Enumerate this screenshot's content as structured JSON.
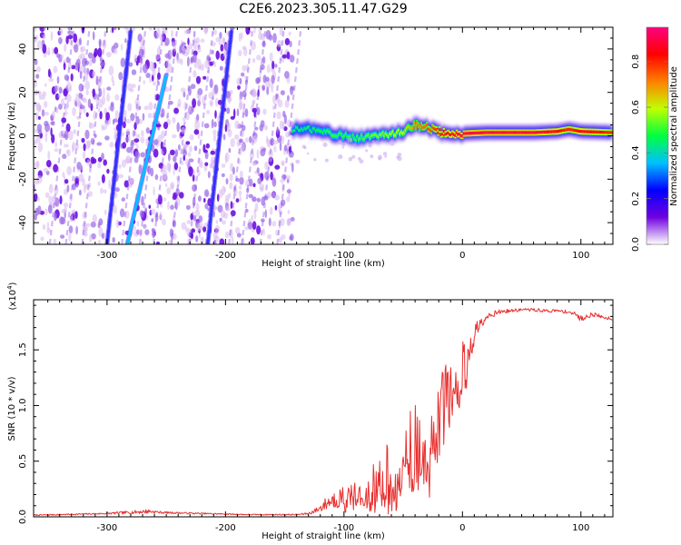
{
  "figure": {
    "title": "C2E6.2023.305.11.47.G29"
  },
  "chart_data": [
    {
      "type": "heatmap",
      "xlabel": "Height of straight line (km)",
      "ylabel": "Frequency (Hz)",
      "xlim": [
        -362,
        127
      ],
      "ylim": [
        -50,
        50
      ],
      "x_ticks": [
        -300,
        -200,
        -100,
        0,
        100
      ],
      "x_tick_labels": [
        "-300",
        "-200",
        "-100",
        "0",
        "100"
      ],
      "y_ticks": [
        -40,
        -20,
        0,
        20,
        40
      ],
      "y_tick_labels": [
        "-40",
        "-20",
        "0",
        "20",
        "40"
      ],
      "colorbar": {
        "label": "Normalized spectral amplitude",
        "range": [
          0,
          0.95
        ],
        "ticks": [
          0.0,
          0.2,
          0.4,
          0.6,
          0.8
        ],
        "tick_labels": [
          "0.0",
          "0.2",
          "0.4",
          "0.6",
          "0.8"
        ],
        "colormap": [
          "#ffffff",
          "#7000e0",
          "#0000ff",
          "#00c0ff",
          "#00ff40",
          "#c0ff00",
          "#ff8000",
          "#ff0000",
          "#ff0080"
        ]
      },
      "features": {
        "noise_region_x": [
          -362,
          -143
        ],
        "diagonal_streaks": [
          {
            "x_start": -283,
            "y_start": -50,
            "x_end": -250,
            "y_end": 28,
            "color": "#00c0ff"
          },
          {
            "x_start": -300,
            "y_start": -50,
            "x_end": -280,
            "y_end": 48,
            "color": "#3030ff"
          },
          {
            "x_start": -215,
            "y_start": -50,
            "x_end": -195,
            "y_end": 48,
            "color": "#3030ff"
          }
        ],
        "signal_band": {
          "x": [
            -143,
            -130,
            -110,
            -90,
            -70,
            -50,
            -40,
            -30,
            -20,
            -10,
            0,
            20,
            40,
            60,
            80,
            90,
            100,
            127
          ],
          "y": [
            3,
            3,
            1,
            -1,
            0,
            2,
            5,
            4,
            2,
            0,
            1,
            1.5,
            1.5,
            1.5,
            2,
            3,
            2,
            1.5
          ],
          "amplitude": [
            0.45,
            0.45,
            0.5,
            0.5,
            0.55,
            0.6,
            0.7,
            0.75,
            0.8,
            0.85,
            0.9,
            0.9,
            0.9,
            0.9,
            0.85,
            0.8,
            0.85,
            0.8
          ]
        }
      }
    },
    {
      "type": "line",
      "xlabel": "Height of straight line (km)",
      "ylabel": "SNR (10 * v/v)",
      "y_multiplier": "(x10^4)",
      "xlim": [
        -362,
        127
      ],
      "ylim": [
        0,
        1.95
      ],
      "x_ticks": [
        -300,
        -200,
        -100,
        0,
        100
      ],
      "x_tick_labels": [
        "-300",
        "-200",
        "-100",
        "0",
        "100"
      ],
      "y_ticks": [
        0.0,
        0.5,
        1.0,
        1.5
      ],
      "y_tick_labels": [
        "0.0",
        "0.5",
        "1.0",
        "1.5"
      ],
      "series": [
        {
          "color": "#e83030",
          "x": [
            -362,
            -340,
            -320,
            -300,
            -280,
            -265,
            -255,
            -240,
            -220,
            -200,
            -180,
            -160,
            -140,
            -130,
            -125,
            -120,
            -115,
            -110,
            -100,
            -90,
            -80,
            -70,
            -60,
            -55,
            -50,
            -45,
            -40,
            -35,
            -30,
            -25,
            -20,
            -15,
            -10,
            -5,
            0,
            5,
            10,
            15,
            20,
            25,
            30,
            40,
            50,
            60,
            70,
            80,
            90,
            95,
            100,
            105,
            110,
            120,
            127
          ],
          "y": [
            0.015,
            0.02,
            0.025,
            0.03,
            0.04,
            0.05,
            0.04,
            0.035,
            0.03,
            0.025,
            0.02,
            0.02,
            0.02,
            0.03,
            0.05,
            0.08,
            0.12,
            0.15,
            0.18,
            0.2,
            0.25,
            0.32,
            0.4,
            0.48,
            0.55,
            0.58,
            0.62,
            0.68,
            0.75,
            0.85,
            0.95,
            1.05,
            1.15,
            1.25,
            1.4,
            1.55,
            1.65,
            1.75,
            1.8,
            1.82,
            1.84,
            1.85,
            1.86,
            1.86,
            1.85,
            1.85,
            1.84,
            1.82,
            1.78,
            1.8,
            1.82,
            1.79,
            1.78
          ],
          "noise_amplitude": [
            0.005,
            0.006,
            0.006,
            0.008,
            0.015,
            0.02,
            0.01,
            0.008,
            0.006,
            0.006,
            0.005,
            0.005,
            0.006,
            0.01,
            0.02,
            0.04,
            0.06,
            0.08,
            0.1,
            0.12,
            0.15,
            0.25,
            0.3,
            0.3,
            0.3,
            0.35,
            0.4,
            0.45,
            0.5,
            0.45,
            0.4,
            0.35,
            0.3,
            0.3,
            0.35,
            0.2,
            0.1,
            0.06,
            0.04,
            0.03,
            0.02,
            0.015,
            0.015,
            0.015,
            0.015,
            0.015,
            0.015,
            0.02,
            0.03,
            0.02,
            0.02,
            0.015,
            0.015
          ]
        }
      ]
    }
  ]
}
